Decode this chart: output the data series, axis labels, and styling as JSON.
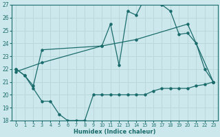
{
  "bg_color": "#cce8ec",
  "line_color": "#1a6b6b",
  "grid_color": "#b8d8dc",
  "xlabel": "Humidex (Indice chaleur)",
  "xlim": [
    -0.5,
    23.5
  ],
  "ylim": [
    18,
    27
  ],
  "yticks": [
    18,
    19,
    20,
    21,
    22,
    23,
    24,
    25,
    26,
    27
  ],
  "xticks": [
    0,
    1,
    2,
    3,
    4,
    5,
    6,
    7,
    8,
    9,
    10,
    11,
    12,
    13,
    14,
    15,
    16,
    17,
    18,
    19,
    20,
    21,
    22,
    23
  ],
  "line1_x": [
    0,
    1,
    2,
    3,
    4,
    5,
    6,
    7,
    8,
    9,
    10,
    11,
    12,
    13,
    14,
    15,
    16,
    17,
    18,
    19,
    20,
    21,
    22,
    23
  ],
  "line1_y": [
    22.0,
    21.5,
    20.5,
    19.5,
    19.5,
    18.5,
    18.0,
    18.0,
    18.0,
    20.0,
    20.0,
    20.0,
    20.0,
    20.0,
    20.0,
    20.0,
    20.3,
    20.5,
    20.5,
    20.5,
    20.5,
    20.7,
    20.8,
    21.0
  ],
  "line2_x": [
    0,
    1,
    2,
    3,
    10,
    11,
    12,
    13,
    14,
    15,
    16,
    17,
    18,
    19,
    20,
    21,
    22,
    23
  ],
  "line2_y": [
    22.0,
    21.5,
    20.7,
    23.5,
    23.8,
    25.5,
    22.3,
    26.5,
    26.2,
    27.5,
    27.5,
    27.0,
    26.5,
    24.7,
    24.8,
    24.0,
    22.0,
    21.0
  ],
  "line3_x": [
    0,
    3,
    10,
    14,
    20,
    23
  ],
  "line3_y": [
    21.8,
    22.5,
    23.8,
    24.3,
    25.5,
    21.0
  ]
}
